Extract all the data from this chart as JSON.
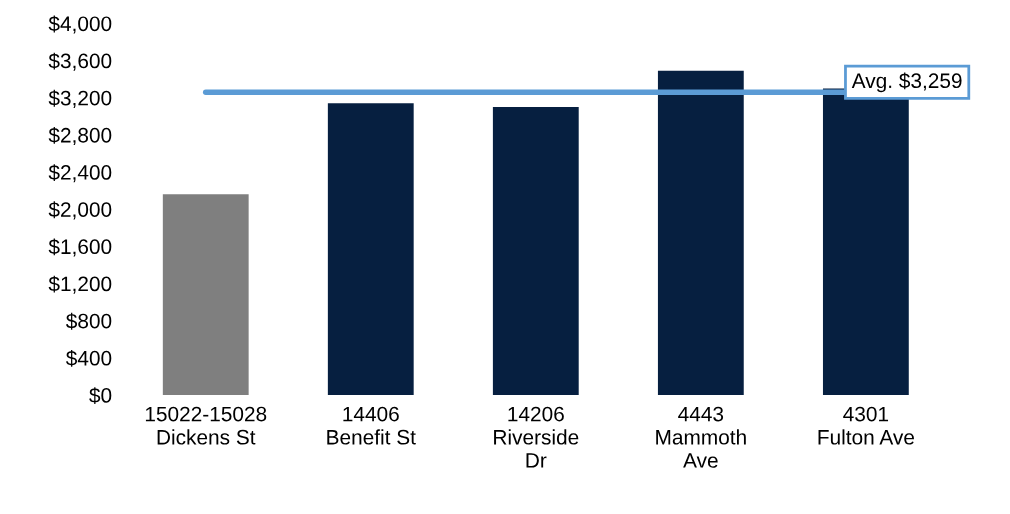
{
  "chart_data": {
    "type": "bar",
    "categories": [
      "15022-15028\nDickens St",
      "14406\nBenefit St",
      "14206\nRiverside\nDr",
      "4443\nMammoth\nAve",
      "4301\nFulton Ave"
    ],
    "values": [
      2160,
      3140,
      3100,
      3490,
      3300
    ],
    "colors": [
      "#7f7f7f",
      "#061f40",
      "#061f40",
      "#061f40",
      "#061f40"
    ],
    "ylim": [
      0,
      4000
    ],
    "yticks": [
      {
        "value": 0,
        "label": "$0"
      },
      {
        "value": 400,
        "label": "$400"
      },
      {
        "value": 800,
        "label": "$800"
      },
      {
        "value": 1200,
        "label": "$1,200"
      },
      {
        "value": 1600,
        "label": "$1,600"
      },
      {
        "value": 2000,
        "label": "$2,000"
      },
      {
        "value": 2400,
        "label": "$2,400"
      },
      {
        "value": 2800,
        "label": "$2,800"
      },
      {
        "value": 3200,
        "label": "$3,200"
      },
      {
        "value": 3600,
        "label": "$3,600"
      },
      {
        "value": 4000,
        "label": "$4,000"
      }
    ],
    "ref_lines": [
      {
        "axis": "y",
        "value": 3259,
        "label": "Avg. $3,259",
        "color": "#5b9bd5"
      }
    ],
    "grid": false,
    "legend": false
  }
}
